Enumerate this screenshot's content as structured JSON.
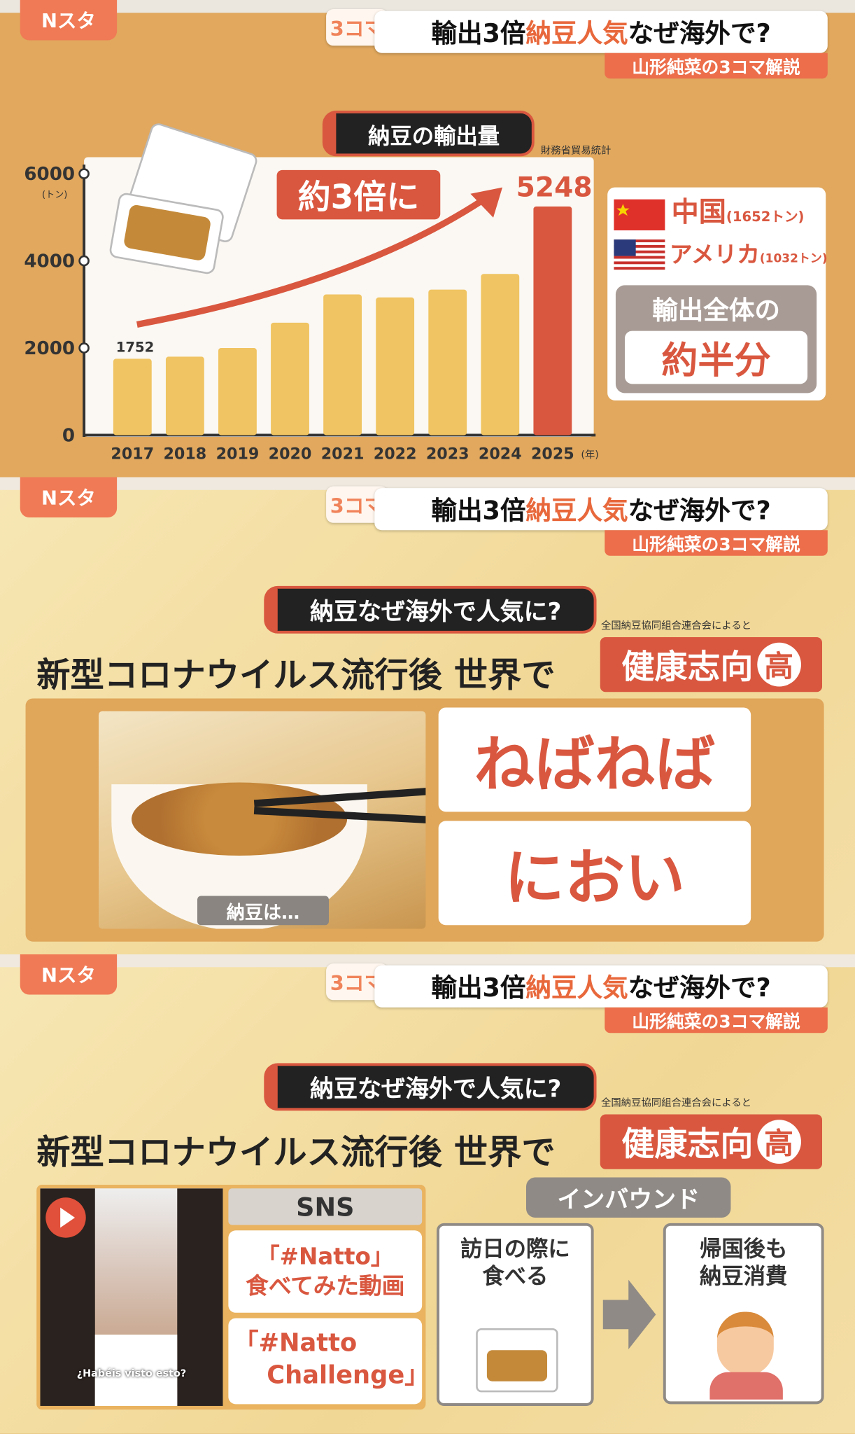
{
  "header": {
    "logo": "Nスタ",
    "badge": "3コマ",
    "title_a": "輸出3倍",
    "title_b": "納豆人気",
    "title_c": "なぜ海外で?",
    "subtitle": "山形純菜の3コマ解説"
  },
  "panel1": {
    "pill": "納豆の輸出量",
    "source": "財務省貿易統計",
    "callout": "約3倍に",
    "legend": {
      "china": "中国",
      "china_val": "(1652トン)",
      "usa": "アメリカ",
      "usa_val": "(1032トン)",
      "share_a": "輸出全体の",
      "share_b": "約半分"
    }
  },
  "chart_data": {
    "type": "bar",
    "title": "納豆の輸出量",
    "ylabel": "(トン)",
    "xlabel": "(年)",
    "ylim": [
      0,
      6000
    ],
    "yticks": [
      "0",
      "2000",
      "4000",
      "6000"
    ],
    "categories": [
      "2017",
      "2018",
      "2019",
      "2020",
      "2021",
      "2022",
      "2023",
      "2024",
      "2025"
    ],
    "values": [
      1752,
      1800,
      2000,
      2580,
      3230,
      3160,
      3340,
      3700,
      5248
    ],
    "data_labels": {
      "2017": "1752",
      "2025": "5248"
    },
    "colors": {
      "bar": "#f0c462",
      "highlight": "#d9573f"
    }
  },
  "panel2": {
    "pill": "納豆なぜ海外で人気に?",
    "source": "全国納豆協同組合連合会によると",
    "headline": "新型コロナウイルス流行後 世界で",
    "health": "健康志向",
    "high": "高",
    "photo_caption": "納豆は…",
    "word1": "ねばねば",
    "word2": "におい"
  },
  "panel3": {
    "pill": "納豆なぜ海外で人気に?",
    "source": "全国納豆協同組合連合会によると",
    "headline": "新型コロナウイルス流行後 世界で",
    "health": "健康志向",
    "high": "高",
    "video_caption": "¿Habéis visto esto?",
    "sns": "SNS",
    "sns1a": "「#Natto」",
    "sns1b": "食べてみた動画",
    "sns2a": "「#Natto",
    "sns2b": "Challenge」",
    "inbound": "インバウンド",
    "step1a": "訪日の際に",
    "step1b": "食べる",
    "step2a": "帰国後も",
    "step2b": "納豆消費"
  }
}
